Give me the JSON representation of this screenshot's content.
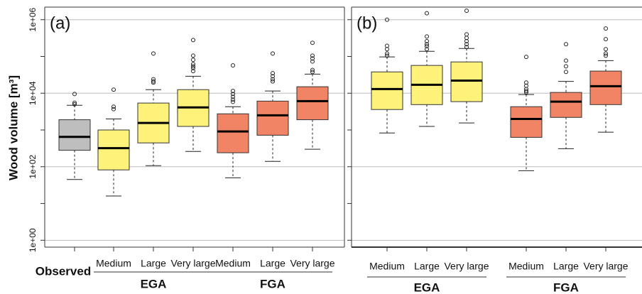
{
  "chart_data": [
    {
      "type": "boxplot",
      "title": "(a)",
      "ylabel": "Wood volume [m³]",
      "log_y": true,
      "grid": true,
      "ylim": [
        0.65,
        2200000
      ],
      "yticks": [
        {
          "value": 1,
          "label": "1e+00"
        },
        {
          "value": 100,
          "label": "1e+02"
        },
        {
          "value": 10000,
          "label": "1e+04"
        },
        {
          "value": 1000000,
          "label": "1e+06"
        }
      ],
      "minor_yticks": [
        10,
        1000,
        100000
      ],
      "boxes": [
        {
          "name": "Observed",
          "color": "#bebebe",
          "min": 45,
          "q1": 280,
          "median": 650,
          "q3": 1900,
          "max": 4700,
          "outliers": [
            5000,
            5500,
            9500
          ]
        }
      ],
      "groups": [
        {
          "name": "EGA",
          "boxes": [
            {
              "name": "Medium",
              "color": "#fff27a",
              "min": 16,
              "q1": 82,
              "median": 320,
              "q3": 1000,
              "max": 2000,
              "outliers": [
                3700,
                4300,
                12500
              ]
            },
            {
              "name": "Large",
              "color": "#fff27a",
              "min": 107,
              "q1": 445,
              "median": 1550,
              "q3": 5400,
              "max": 12500,
              "outliers": [
                19500,
                21000,
                24000,
                120000
              ]
            },
            {
              "name": "Very large",
              "color": "#fff27a",
              "min": 260,
              "q1": 1250,
              "median": 4100,
              "q3": 12500,
              "max": 29000,
              "outliers": [
                40000,
                48000,
                54000,
                62000,
                81000,
                105000,
                280000
              ]
            }
          ]
        },
        {
          "name": "FGA",
          "boxes": [
            {
              "name": "Medium",
              "color": "#f08465",
              "min": 50,
              "q1": 240,
              "median": 910,
              "q3": 2750,
              "max": 4300,
              "outliers": [
                5800,
                6700,
                8000,
                9500,
                11500,
                57000
              ]
            },
            {
              "name": "Large",
              "color": "#f08465",
              "min": 140,
              "q1": 720,
              "median": 2500,
              "q3": 6100,
              "max": 11500,
              "outliers": [
                21000,
                24000,
                29000,
                35000,
                120000
              ]
            },
            {
              "name": "Very large",
              "color": "#f08465",
              "min": 300,
              "q1": 1900,
              "median": 6100,
              "q3": 15000,
              "max": 33000,
              "outliers": [
                38000,
                43000,
                73000,
                88000,
                105000,
                235000
              ]
            }
          ]
        }
      ]
    },
    {
      "type": "boxplot",
      "title": "(b)",
      "log_y": true,
      "grid": true,
      "show_ytick_labels": false,
      "ylim": [
        0.65,
        2200000
      ],
      "yticks": [
        1,
        100,
        10000,
        1000000
      ],
      "minor_yticks": [
        10,
        1000,
        100000
      ],
      "boxes": [],
      "groups": [
        {
          "name": "EGA",
          "boxes": [
            {
              "name": "Medium",
              "color": "#fff27a",
              "min": 830,
              "q1": 3600,
              "median": 13000,
              "q3": 38000,
              "max": 97000,
              "outliers": [
                105000,
                120000,
                158000,
                195000,
                1000000
              ]
            },
            {
              "name": "Large",
              "color": "#fff27a",
              "min": 1250,
              "q1": 4900,
              "median": 17000,
              "q3": 57000,
              "max": 138000,
              "outliers": [
                158000,
                190000,
                215000,
                260000,
                350000,
                1500000
              ]
            },
            {
              "name": "Very large",
              "color": "#fff27a",
              "min": 1550,
              "q1": 5900,
              "median": 22000,
              "q3": 71000,
              "max": 165000,
              "outliers": [
                180000,
                215000,
                260000,
                320000,
                400000,
                1750000
              ]
            }
          ]
        },
        {
          "name": "FGA",
          "boxes": [
            {
              "name": "Medium",
              "color": "#f08465",
              "min": 78,
              "q1": 630,
              "median": 2000,
              "q3": 4300,
              "max": 9200,
              "outliers": [
                10500,
                11500,
                13000,
                16000,
                19500,
                97000
              ]
            },
            {
              "name": "Large",
              "color": "#f08465",
              "min": 310,
              "q1": 2200,
              "median": 5900,
              "q3": 10500,
              "max": 21000,
              "outliers": [
                38000,
                54000,
                77000,
                215000
              ]
            },
            {
              "name": "Very large",
              "color": "#f08465",
              "min": 870,
              "q1": 4900,
              "median": 15500,
              "q3": 40000,
              "max": 77000,
              "outliers": [
                105000,
                120000,
                158000,
                295000,
                575000
              ]
            }
          ]
        }
      ]
    }
  ]
}
